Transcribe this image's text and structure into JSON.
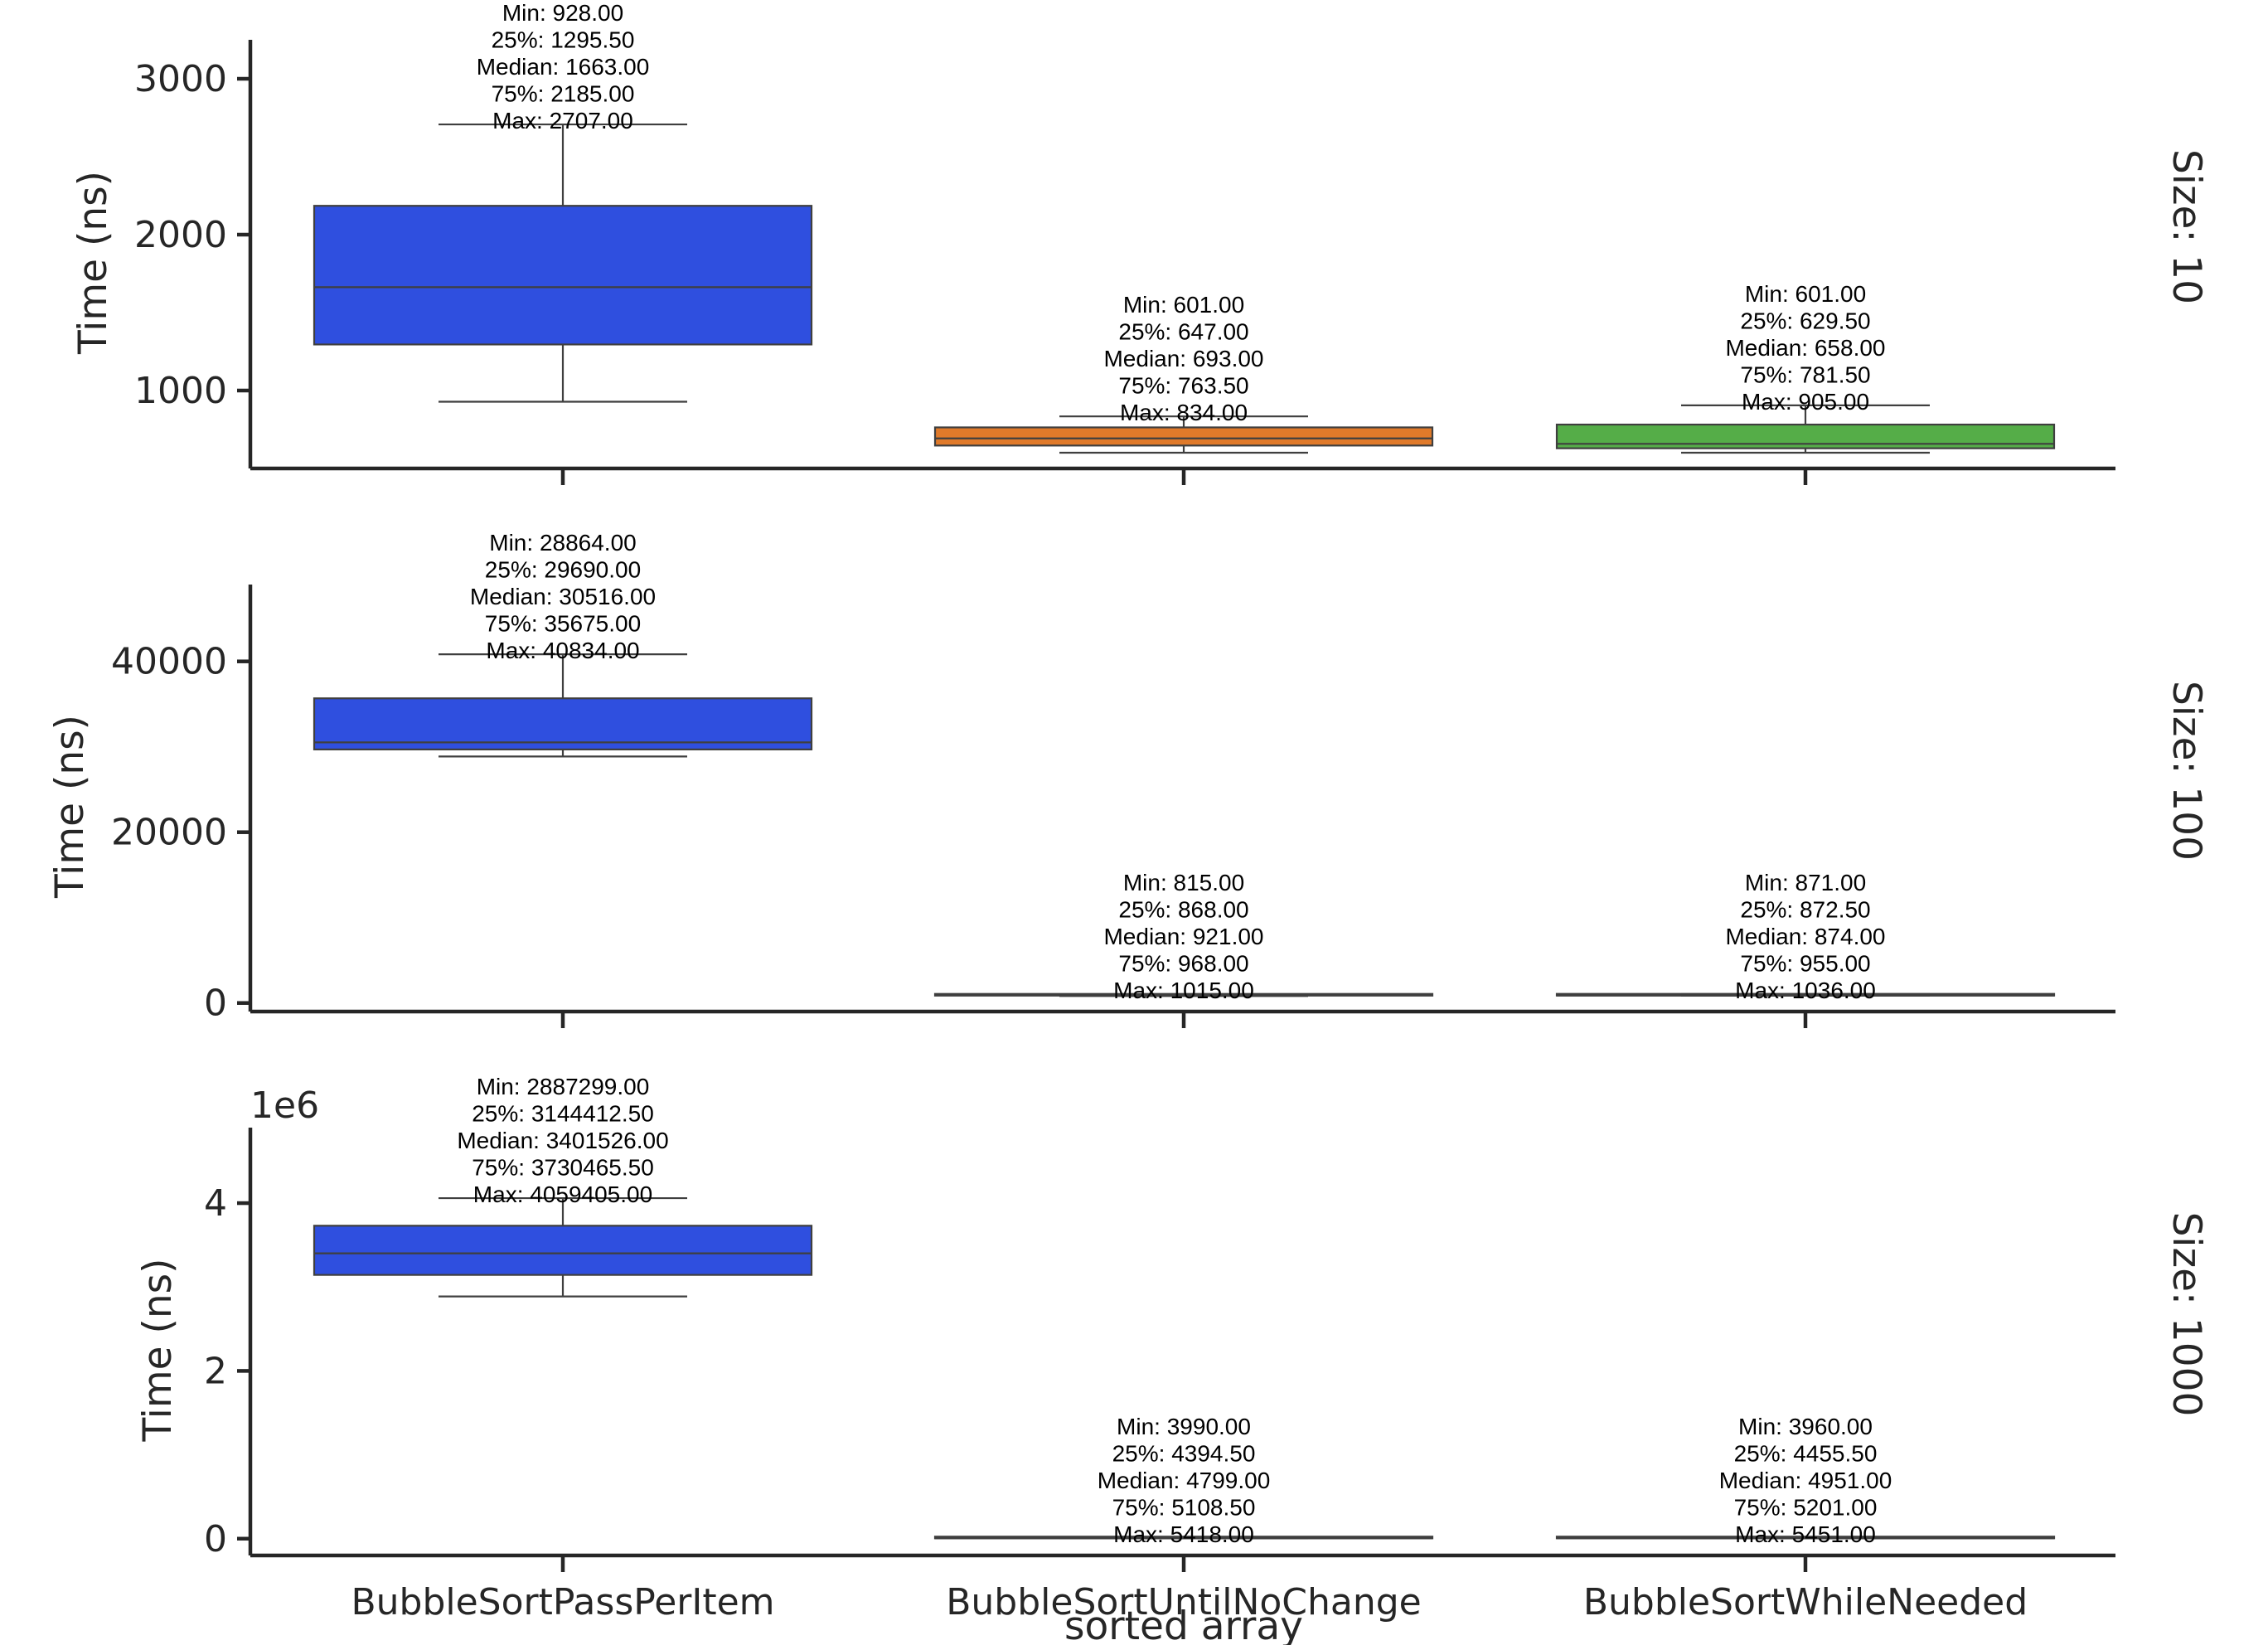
{
  "chart_data": {
    "type": "box",
    "xlabel": "sorted array",
    "ylabel": "Time (ns)",
    "categories": [
      "BubbleSortPassPerItem",
      "BubbleSortUntilNoChange",
      "BubbleSortWhileNeeded"
    ],
    "colors": [
      "#2f4fdf",
      "#e07a2a",
      "#55ad48"
    ],
    "panels": [
      {
        "row_label": "Size: 10",
        "ylim": [
          500,
          3250
        ],
        "yticks": [
          1000,
          2000,
          3000
        ],
        "ytick_labels": [
          "1000",
          "2000",
          "3000"
        ],
        "offset_label": "",
        "boxes": [
          {
            "min": 928.0,
            "q1": 1295.5,
            "median": 1663.0,
            "q3": 2185.0,
            "max": 2707.0,
            "annotation": [
              "Min: 928.00",
              "25%: 1295.50",
              "Median: 1663.00",
              "75%: 2185.00",
              "Max: 2707.00"
            ]
          },
          {
            "min": 601.0,
            "q1": 647.0,
            "median": 693.0,
            "q3": 763.5,
            "max": 834.0,
            "annotation": [
              "Min: 601.00",
              "25%: 647.00",
              "Median: 693.00",
              "75%: 763.50",
              "Max: 834.00"
            ]
          },
          {
            "min": 601.0,
            "q1": 629.5,
            "median": 658.0,
            "q3": 781.5,
            "max": 905.0,
            "annotation": [
              "Min: 601.00",
              "25%: 629.50",
              "Median: 658.00",
              "75%: 781.50",
              "Max: 905.00"
            ]
          }
        ]
      },
      {
        "row_label": "Size: 100",
        "ylim": [
          -1000,
          49000
        ],
        "yticks": [
          0,
          20000,
          40000
        ],
        "ytick_labels": [
          "0",
          "20000",
          "40000"
        ],
        "offset_label": "",
        "boxes": [
          {
            "min": 28864.0,
            "q1": 29690.0,
            "median": 30516.0,
            "q3": 35675.0,
            "max": 40834.0,
            "annotation": [
              "Min: 28864.00",
              "25%: 29690.00",
              "Median: 30516.00",
              "75%: 35675.00",
              "Max: 40834.00"
            ]
          },
          {
            "min": 815.0,
            "q1": 868.0,
            "median": 921.0,
            "q3": 968.0,
            "max": 1015.0,
            "annotation": [
              "Min: 815.00",
              "25%: 868.00",
              "Median: 921.00",
              "75%: 968.00",
              "Max: 1015.00"
            ]
          },
          {
            "min": 871.0,
            "q1": 872.5,
            "median": 874.0,
            "q3": 955.0,
            "max": 1036.0,
            "annotation": [
              "Min: 871.00",
              "25%: 872.50",
              "Median: 874.00",
              "75%: 955.00",
              "Max: 1036.00"
            ]
          }
        ]
      },
      {
        "row_label": "Size: 1000",
        "ylim": [
          -200000,
          4900000
        ],
        "yticks": [
          0,
          2000000,
          4000000
        ],
        "ytick_labels": [
          "0",
          "2",
          "4"
        ],
        "offset_label": "1e6",
        "boxes": [
          {
            "min": 2887299.0,
            "q1": 3144412.5,
            "median": 3401526.0,
            "q3": 3730465.5,
            "max": 4059405.0,
            "annotation": [
              "Min: 2887299.00",
              "25%: 3144412.50",
              "Median: 3401526.00",
              "75%: 3730465.50",
              "Max: 4059405.00"
            ]
          },
          {
            "min": 3990.0,
            "q1": 4394.5,
            "median": 4799.0,
            "q3": 5108.5,
            "max": 5418.0,
            "annotation": [
              "Min: 3990.00",
              "25%: 4394.50",
              "Median: 4799.00",
              "75%: 5108.50",
              "Max: 5418.00"
            ]
          },
          {
            "min": 3960.0,
            "q1": 4455.5,
            "median": 4951.0,
            "q3": 5201.0,
            "max": 5451.0,
            "annotation": [
              "Min: 3960.00",
              "25%: 4455.50",
              "Median: 4951.00",
              "75%: 5201.00",
              "Max: 5451.00"
            ]
          }
        ]
      }
    ]
  }
}
